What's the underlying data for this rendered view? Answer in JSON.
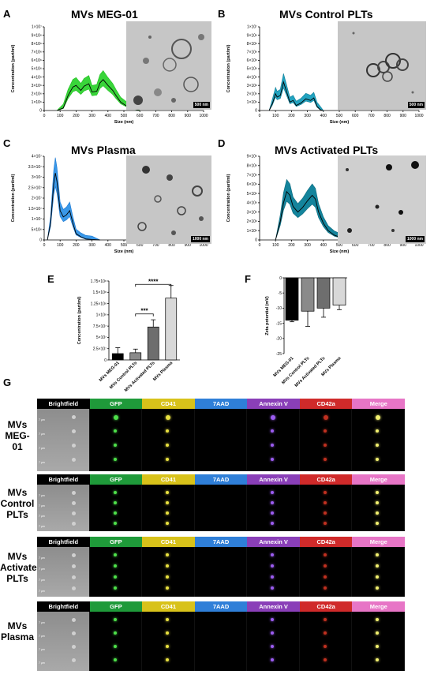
{
  "panels": {
    "A": {
      "letter": "A",
      "title": "MVs MEG-01",
      "scale": "500 nm",
      "color": "#1fbf1f",
      "fill": "#39d53a"
    },
    "B": {
      "letter": "B",
      "title": "MVs Control PLTs",
      "scale": "500 nm",
      "color": "#0f7e97",
      "fill": "#22a3c0"
    },
    "C": {
      "letter": "C",
      "title": "MVs Plasma",
      "scale": "1000 nm",
      "color": "#1b78d2",
      "fill": "#3a98e8"
    },
    "D": {
      "letter": "D",
      "title": "MVs Activated PLTs",
      "scale": "1000 nm",
      "color": "#0d6a7e",
      "fill": "#14849c"
    },
    "E": {
      "letter": "E"
    },
    "F": {
      "letter": "F"
    },
    "G": {
      "letter": "G"
    }
  },
  "nta_axes": {
    "xlabel": "Size (nm)",
    "ylabel": "Concentration (part/ml)",
    "xticks": [
      "0",
      "100",
      "200",
      "300",
      "400",
      "500",
      "600",
      "700",
      "800",
      "900",
      "1000"
    ],
    "yticks_A": [
      "0",
      "1×10⁶",
      "2×10⁶",
      "3×10⁶",
      "4×10⁶",
      "5×10⁶",
      "6×10⁶",
      "7×10⁶",
      "8×10⁶",
      "9×10⁶",
      "1×10⁷"
    ],
    "yticks_B": [
      "0",
      "1×10⁶",
      "2×10⁶",
      "3×10⁶",
      "4×10⁶",
      "5×10⁶",
      "6×10⁶",
      "7×10⁶",
      "8×10⁶",
      "9×10⁶",
      "1×10⁷"
    ],
    "yticks_C": [
      "0",
      "5×10⁶",
      "1×10⁷",
      "1.5×10⁷",
      "2×10⁷",
      "2.5×10⁷",
      "3×10⁷",
      "3.5×10⁷",
      "4×10⁷"
    ],
    "yticks_D": [
      "0",
      "1×10⁶",
      "2×10⁶",
      "3×10⁶",
      "4×10⁶",
      "5×10⁶",
      "6×10⁶",
      "7×10⁶",
      "8×10⁶",
      "9×10⁶"
    ]
  },
  "chart_data": [
    {
      "type": "area",
      "panel": "A",
      "x": [
        80,
        120,
        150,
        180,
        200,
        230,
        250,
        280,
        300,
        330,
        350,
        370,
        400,
        430,
        450,
        480,
        520,
        560,
        600
      ],
      "y": [
        0,
        0.3,
        1.8,
        2.8,
        3.0,
        2.4,
        2.9,
        3.2,
        2.2,
        2.3,
        3.3,
        3.7,
        3.0,
        2.4,
        1.8,
        1.0,
        0.5,
        0.2,
        0
      ],
      "ylim": [
        0,
        10
      ],
      "unit": "×10⁶ part/ml",
      "xlim": [
        0,
        1000
      ]
    },
    {
      "type": "area",
      "panel": "B",
      "x": [
        60,
        80,
        100,
        110,
        130,
        150,
        170,
        190,
        210,
        230,
        260,
        290,
        320,
        340,
        360,
        380,
        400
      ],
      "y": [
        0,
        0.8,
        2.0,
        1.6,
        1.8,
        3.4,
        2.2,
        1.0,
        1.2,
        0.6,
        0.9,
        1.4,
        1.2,
        1.5,
        0.5,
        0.1,
        0
      ],
      "ylim": [
        0,
        10
      ],
      "unit": "×10⁶ part/ml",
      "xlim": [
        0,
        1000
      ]
    },
    {
      "type": "area",
      "panel": "C",
      "x": [
        20,
        40,
        60,
        70,
        80,
        100,
        120,
        140,
        160,
        180,
        200,
        230,
        260,
        300,
        350
      ],
      "y": [
        0,
        8,
        27,
        32,
        28,
        14,
        11,
        12,
        14,
        8,
        3,
        1.5,
        0.5,
        0.2,
        0
      ],
      "ylim": [
        0,
        40
      ],
      "unit": "×10⁶ part/ml",
      "xlim": [
        0,
        1000
      ]
    },
    {
      "type": "area",
      "panel": "D",
      "x": [
        100,
        130,
        150,
        170,
        190,
        210,
        240,
        270,
        300,
        330,
        350,
        370,
        400,
        430,
        470,
        520,
        600
      ],
      "y": [
        0,
        2.0,
        4.0,
        5.2,
        4.8,
        3.6,
        3.0,
        3.5,
        4.2,
        4.8,
        4.4,
        3.0,
        1.8,
        1.0,
        0.5,
        0.2,
        0
      ],
      "ylim": [
        0,
        9
      ],
      "unit": "×10⁶ part/ml",
      "xlim": [
        0,
        1000
      ]
    },
    {
      "type": "bar",
      "panel": "E",
      "categories": [
        "MVs MEG-01",
        "MVs Control PLTs",
        "MVs Activated PLTs",
        "MVs Plasma"
      ],
      "values": [
        14000000,
        16000000,
        73000000,
        137000000
      ],
      "errors": [
        13000000,
        8000000,
        16000000,
        28000000
      ],
      "colors": [
        "#000000",
        "#8a8a8a",
        "#6e6e6e",
        "#d8d8d8"
      ],
      "ylabel": "Concentration (part/ml)",
      "ylim": [
        0,
        175000000
      ],
      "yticks": [
        "0",
        "2.5×10⁷",
        "5×10⁷",
        "7.5×10⁷",
        "1×10⁸",
        "1.25×10⁸",
        "1.5×10⁸",
        "1.75×10⁸"
      ],
      "annotations": [
        {
          "from": 1,
          "to": 2,
          "label": "***"
        },
        {
          "from": 1,
          "to": 3,
          "label": "****"
        }
      ]
    },
    {
      "type": "bar",
      "panel": "F",
      "categories": [
        "MVs MEG-01",
        "MVs Control PLTs",
        "MVs Activated PLTs",
        "MVs Plasma"
      ],
      "values": [
        -14,
        -11,
        -10,
        -9
      ],
      "errors": [
        0.5,
        5,
        3,
        1.5
      ],
      "colors": [
        "#000000",
        "#8a8a8a",
        "#6e6e6e",
        "#d8d8d8"
      ],
      "ylabel": "Zeta potential (mV)",
      "ylim": [
        -25,
        0
      ],
      "yticks": [
        "0",
        "-5",
        "-10",
        "-15",
        "-20",
        "-25"
      ]
    }
  ],
  "flow": {
    "headers": [
      {
        "label": "Brightfield",
        "color": "#000000"
      },
      {
        "label": "GFP",
        "color": "#1f9a3a"
      },
      {
        "label": "CD41",
        "color": "#d8c21a"
      },
      {
        "label": "7AAD",
        "color": "#2f7fd8"
      },
      {
        "label": "Annexin V",
        "color": "#8a3fb8"
      },
      {
        "label": "CD42a",
        "color": "#d02a2a"
      },
      {
        "label": "Merge",
        "color": "#e775c6"
      }
    ],
    "rows": [
      {
        "label": "MVs MEG-01"
      },
      {
        "label": "MVs Control PLTs"
      },
      {
        "label": "MVs Activated PLTs"
      },
      {
        "label": "MVs Plasma"
      }
    ],
    "scalebar": "7 μm"
  }
}
